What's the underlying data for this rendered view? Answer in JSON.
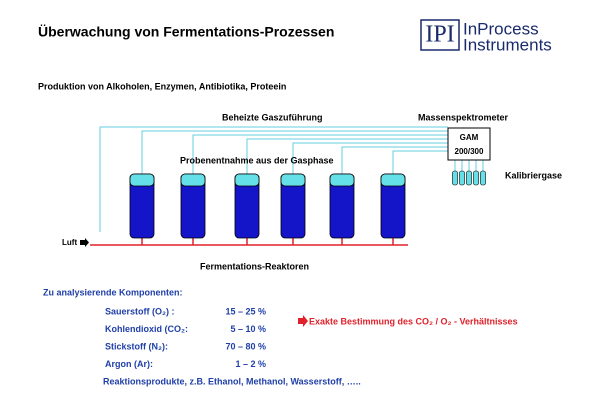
{
  "header": {
    "title": "Überwachung von Fermentations-Prozessen",
    "logo": {
      "mark": "IPI",
      "line1": "InProcess",
      "line2": "Instruments"
    }
  },
  "subtitle": "Produktion von Alkoholen, Enzymen, Antibiotika, Proteein",
  "diagram": {
    "gas_supply": "Beheizte Gaszuführung",
    "mass_spec": "Massenspektrometer",
    "gam": "GAM",
    "gam_model": "200/300",
    "sampling": "Probenentnahme aus der Gasphase",
    "calibration": "Kalibriergase",
    "air": "Luft",
    "reactors": "Fermentations-Reaktoren"
  },
  "components": {
    "heading": "Zu analysierende Komponenten:",
    "rows": [
      [
        "Sauerstoff (O₂) :",
        "15 – 25 %"
      ],
      [
        "Kohlendioxid (CO₂:",
        "5 – 10 %"
      ],
      [
        "Stickstoff (N₂):",
        "70 – 80 %"
      ],
      [
        "Argon (Ar):",
        "1 – 2 %"
      ]
    ],
    "products": "Reaktionsprodukte, z.B. Ethanol, Methanol, Wasserstoff, ….."
  },
  "note": "Exakte Bestimmung des CO₂ / O₂ - Verhältnisses"
}
